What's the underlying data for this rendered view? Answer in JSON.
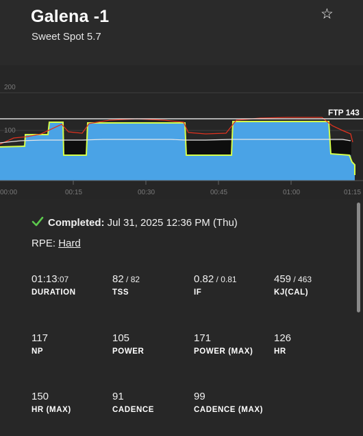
{
  "header": {
    "title": "Galena -1",
    "subtitle": "Sweet Spot 5.7",
    "favorite_icon": "star-outline-icon"
  },
  "chart": {
    "y_ticks": [
      "200",
      "100"
    ],
    "x_ticks": [
      "00:00",
      "00:15",
      "00:30",
      "00:45",
      "01:00",
      "01:15"
    ],
    "ftp_label": "FTP 143",
    "colors": {
      "power_fill": "#4aa3e6",
      "target": "#d6ff4a",
      "hr": "#e0321f",
      "cadence": "#e8e8e8",
      "ftp_line": "#ffffff"
    }
  },
  "workout": {
    "completed_label": "Completed:",
    "completed_value": " Jul 31, 2025 12:36 PM (Thu)",
    "check_icon": "checkmark-icon",
    "check_color": "#5cc94d",
    "rpe_label": "RPE: ",
    "rpe_value": "Hard"
  },
  "stats": [
    {
      "main": "01:13",
      "sub": ":07",
      "label": "DURATION"
    },
    {
      "main": "82",
      "sub": " / 82",
      "label": "TSS"
    },
    {
      "main": "0.82",
      "sub": " / 0.81",
      "label": "IF"
    },
    {
      "main": "459",
      "sub": " / 463",
      "label": "KJ(CAL)"
    },
    {
      "main": "117",
      "sub": "",
      "label": "NP"
    },
    {
      "main": "105",
      "sub": "",
      "label": "POWER"
    },
    {
      "main": "171",
      "sub": "",
      "label": "POWER (MAX)"
    },
    {
      "main": "126",
      "sub": "",
      "label": "HR"
    },
    {
      "main": "150",
      "sub": "",
      "label": "HR (MAX)"
    },
    {
      "main": "91",
      "sub": "",
      "label": "CADENCE"
    },
    {
      "main": "99",
      "sub": "",
      "label": "CADENCE (MAX)"
    }
  ]
}
